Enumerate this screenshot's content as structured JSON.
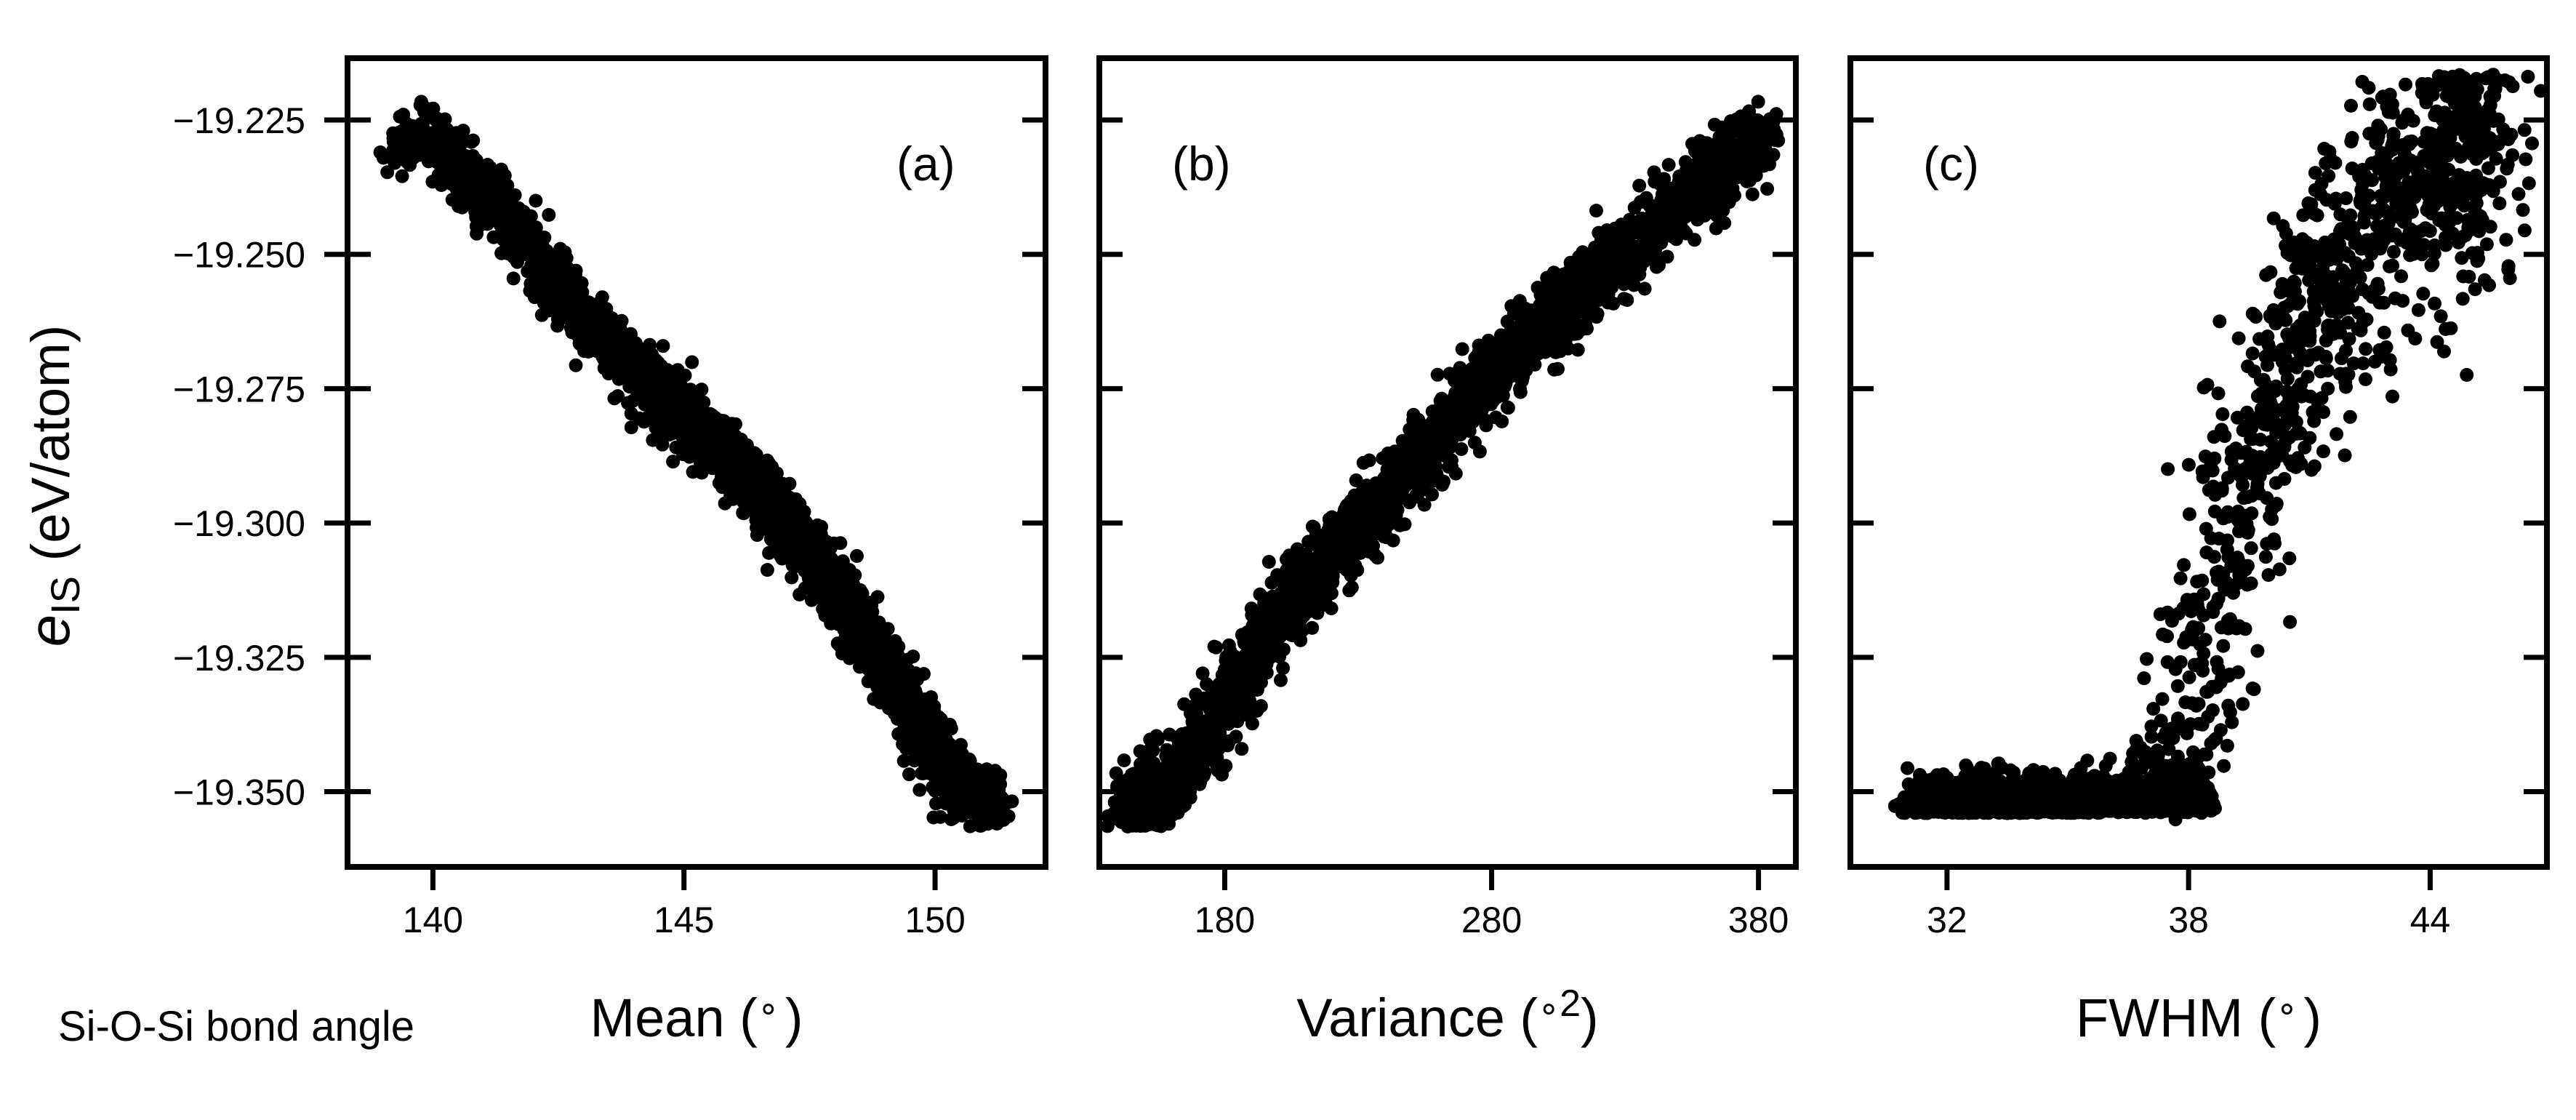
{
  "figure": {
    "footnote": "Si-O-Si bond angle",
    "ylabel_symbol": "e",
    "ylabel_subscript": "IS",
    "ylabel_unit": " (eV/atom)"
  },
  "chart_data": [
    {
      "type": "scatter",
      "panel_label": "(a)",
      "xlabel": "Mean (∘)",
      "xlabel_parts": {
        "text": "Mean (",
        "sup": "",
        "deg": "∘",
        "close": ")"
      },
      "ylabel": "eIS (eV/atom)",
      "xlim": [
        138.3,
        152.2
      ],
      "ylim": [
        -19.364,
        -19.2135
      ],
      "xticks": [
        140,
        145,
        150
      ],
      "xtick_labels": [
        "140",
        "145",
        "150"
      ],
      "yticks": [
        -19.225,
        -19.25,
        -19.275,
        -19.3,
        -19.325,
        -19.35
      ],
      "ytick_labels": [
        "−19.225",
        "−19.250",
        "−19.275",
        "−19.300",
        "−19.325",
        "−19.350"
      ],
      "point_color": "#000000",
      "trend_points": [
        [
          139.2,
          -19.232
        ],
        [
          140.0,
          -19.228
        ],
        [
          141.0,
          -19.238
        ],
        [
          142.0,
          -19.25
        ],
        [
          143.0,
          -19.262
        ],
        [
          144.0,
          -19.272
        ],
        [
          145.0,
          -19.28
        ],
        [
          146.0,
          -19.289
        ],
        [
          147.0,
          -19.299
        ],
        [
          148.0,
          -19.312
        ],
        [
          149.0,
          -19.327
        ],
        [
          150.0,
          -19.343
        ],
        [
          150.6,
          -19.35
        ],
        [
          151.2,
          -19.352
        ]
      ]
    },
    {
      "type": "scatter",
      "panel_label": "(b)",
      "xlabel": "Variance (∘ 2)",
      "xlabel_parts": {
        "text": "Variance (",
        "deg": "∘",
        "sup": "2",
        "close": ")"
      },
      "xlim": [
        133.0,
        394.0
      ],
      "ylim": [
        -19.364,
        -19.2135
      ],
      "xticks": [
        180,
        280,
        380
      ],
      "xtick_labels": [
        "180",
        "280",
        "380"
      ],
      "point_color": "#000000",
      "trend_points": [
        [
          144.0,
          -19.354
        ],
        [
          158.0,
          -19.35
        ],
        [
          170.0,
          -19.342
        ],
        [
          185.0,
          -19.33
        ],
        [
          205.0,
          -19.314
        ],
        [
          230.0,
          -19.301
        ],
        [
          255.0,
          -19.287
        ],
        [
          280.0,
          -19.272
        ],
        [
          305.0,
          -19.261
        ],
        [
          330.0,
          -19.25
        ],
        [
          355.0,
          -19.238
        ],
        [
          372.0,
          -19.232
        ],
        [
          385.0,
          -19.228
        ]
      ]
    },
    {
      "type": "scatter",
      "panel_label": "(c)",
      "xlabel": "FWHM (∘)",
      "xlabel_parts": {
        "text": "FWHM (",
        "sup": "",
        "deg": "∘",
        "close": ")"
      },
      "xlim": [
        29.6,
        46.9
      ],
      "ylim": [
        -19.364,
        -19.2135
      ],
      "xticks": [
        32,
        38,
        44
      ],
      "xtick_labels": [
        "32",
        "38",
        "44"
      ],
      "point_color": "#000000",
      "trend_points": [
        [
          31.0,
          -19.352
        ],
        [
          33.0,
          -19.352
        ],
        [
          35.0,
          -19.351
        ],
        [
          37.0,
          -19.35
        ],
        [
          38.0,
          -19.335
        ],
        [
          39.0,
          -19.305
        ],
        [
          40.0,
          -19.28
        ],
        [
          41.0,
          -19.262
        ],
        [
          42.0,
          -19.25
        ],
        [
          43.0,
          -19.24
        ],
        [
          44.0,
          -19.235
        ],
        [
          45.5,
          -19.23
        ]
      ]
    }
  ]
}
